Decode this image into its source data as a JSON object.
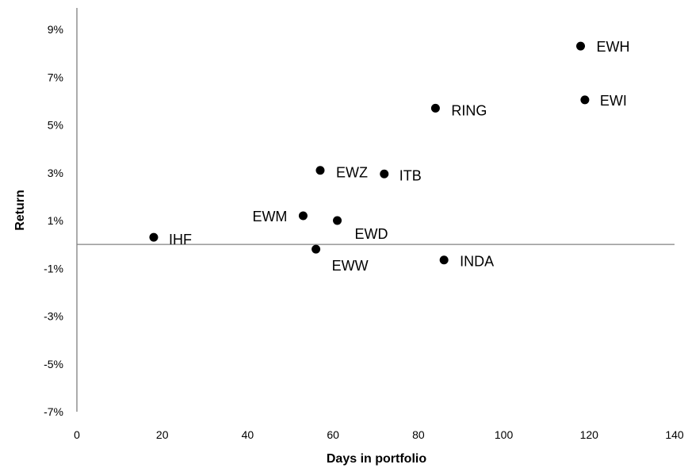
{
  "chart_data": {
    "type": "scatter",
    "title": "",
    "xlabel": "Days in portfolio",
    "ylabel": "Return",
    "xlim": [
      0,
      140
    ],
    "ylim": [
      -7,
      10
    ],
    "x_ticks": [
      0,
      20,
      40,
      60,
      80,
      100,
      120,
      140
    ],
    "x_tick_labels": [
      "0",
      "20",
      "40",
      "60",
      "80",
      "100",
      "120",
      "140"
    ],
    "y_ticks": [
      -7,
      -5,
      -3,
      -1,
      1,
      3,
      5,
      7,
      9
    ],
    "y_tick_labels": [
      "-7%",
      "-5%",
      "-3%",
      "-1%",
      "1%",
      "3%",
      "5%",
      "7%",
      "9%"
    ],
    "grid": false,
    "legend": "none",
    "marker_color": "#000000",
    "points": [
      {
        "label": "IHF",
        "x": 18,
        "y": 0.3
      },
      {
        "label": "EWM",
        "x": 53,
        "y": 1.2
      },
      {
        "label": "EWZ",
        "x": 57,
        "y": 3.1
      },
      {
        "label": "EWW",
        "x": 56,
        "y": -0.2
      },
      {
        "label": "EWD",
        "x": 61,
        "y": 1.0
      },
      {
        "label": "ITB",
        "x": 72,
        "y": 2.95
      },
      {
        "label": "RING",
        "x": 84,
        "y": 5.7
      },
      {
        "label": "INDA",
        "x": 86,
        "y": -0.65
      },
      {
        "label": "EWH",
        "x": 118,
        "y": 8.3
      },
      {
        "label": "EWI",
        "x": 119,
        "y": 6.05
      }
    ]
  }
}
